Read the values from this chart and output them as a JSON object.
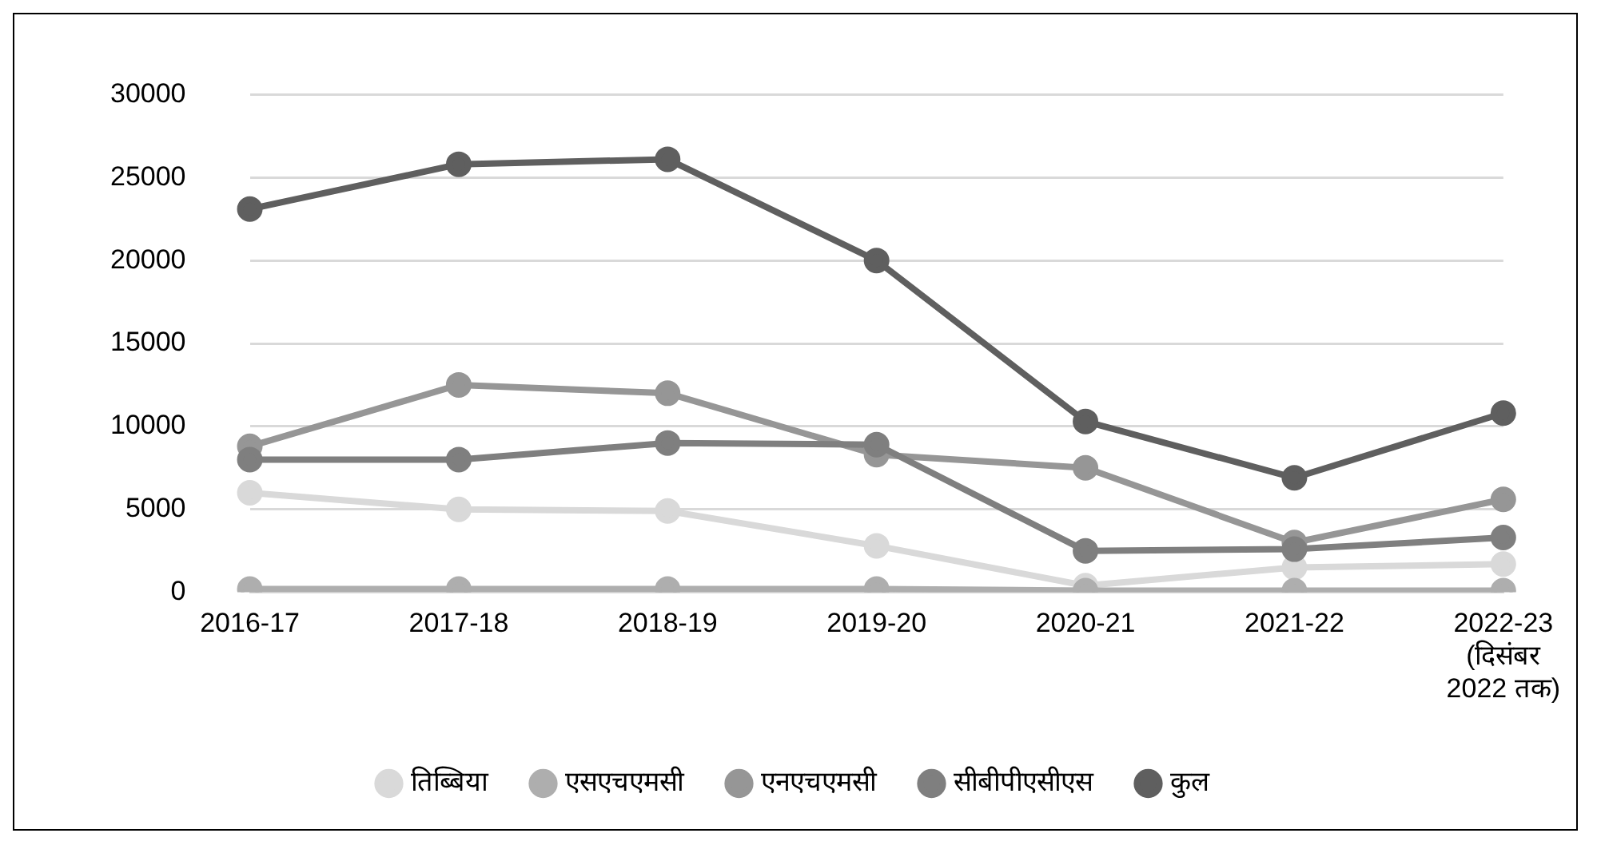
{
  "chart_data": {
    "type": "line",
    "categories": [
      "2016-17",
      "2017-18",
      "2018-19",
      "2019-20",
      "2020-21",
      "2021-22",
      "2022-23 (दिसंबर 2022 तक)"
    ],
    "series": [
      {
        "name": "तिब्बिया",
        "color": "#d9d9d9",
        "values": [
          6000,
          5000,
          4900,
          2800,
          400,
          1500,
          1700
        ]
      },
      {
        "name": "एसएचएमसी",
        "color": "#aeaeae",
        "values": [
          200,
          200,
          200,
          200,
          100,
          100,
          100
        ]
      },
      {
        "name": "एनएचएमसी",
        "color": "#969696",
        "values": [
          8800,
          12500,
          12000,
          8300,
          7500,
          3000,
          5600
        ]
      },
      {
        "name": "सीबीपीएसीएस",
        "color": "#7f7f7f",
        "values": [
          8000,
          8000,
          9000,
          8900,
          2500,
          2600,
          3300
        ]
      },
      {
        "name": "कुल",
        "color": "#5f5f5f",
        "values": [
          23100,
          25800,
          26100,
          20000,
          10300,
          6900,
          10800
        ]
      }
    ],
    "ylim": [
      0,
      30000
    ],
    "yticks": [
      0,
      5000,
      10000,
      15000,
      20000,
      25000,
      30000
    ],
    "grid": "y",
    "legend": "bottom",
    "marker": "circle",
    "line_style": "solid"
  }
}
